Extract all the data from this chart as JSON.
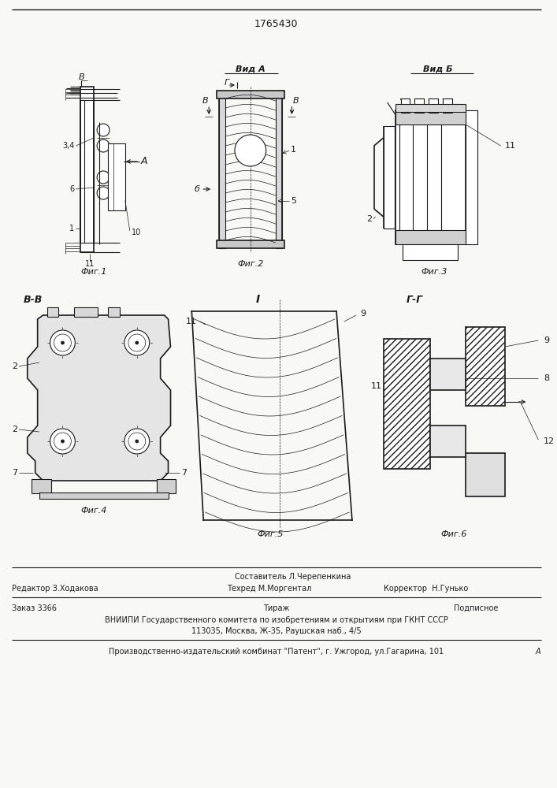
{
  "title_number": "1765430",
  "background_color": "#f8f8f5",
  "line_color": "#1a1a1a",
  "fig_labels": [
    "Фиг.1",
    "Фиг.2",
    "Фиг.3",
    "Фиг.4",
    "Фиг.5",
    "Фиг.6"
  ],
  "view_label_a": "Вид А",
  "view_label_b": "Вид Б",
  "section_bb": "В-В",
  "section_i": "I",
  "section_gg": "Г-Г",
  "footer_editor": "Редактор З.Ходакова",
  "footer_composer": "Составитель Л.Черепенкина",
  "footer_techred": "Техред М.Моргентал",
  "footer_corrector": "Корректор  Н.Гунько",
  "footer_order": "Заказ 3366",
  "footer_tirazh": "Тираж",
  "footer_podpisnoe": "Подписное",
  "footer_vniiipi": "ВНИИПИ Государственного комитета по изобретениям и открытиям при ГКНТ СССР",
  "footer_address": "113035, Москва, Ж-35, Раушская наб., 4/5",
  "footer_production": "Производственно-издательский комбинат \"Патент\", г. Ужгород, ул.Гагарина, 101"
}
